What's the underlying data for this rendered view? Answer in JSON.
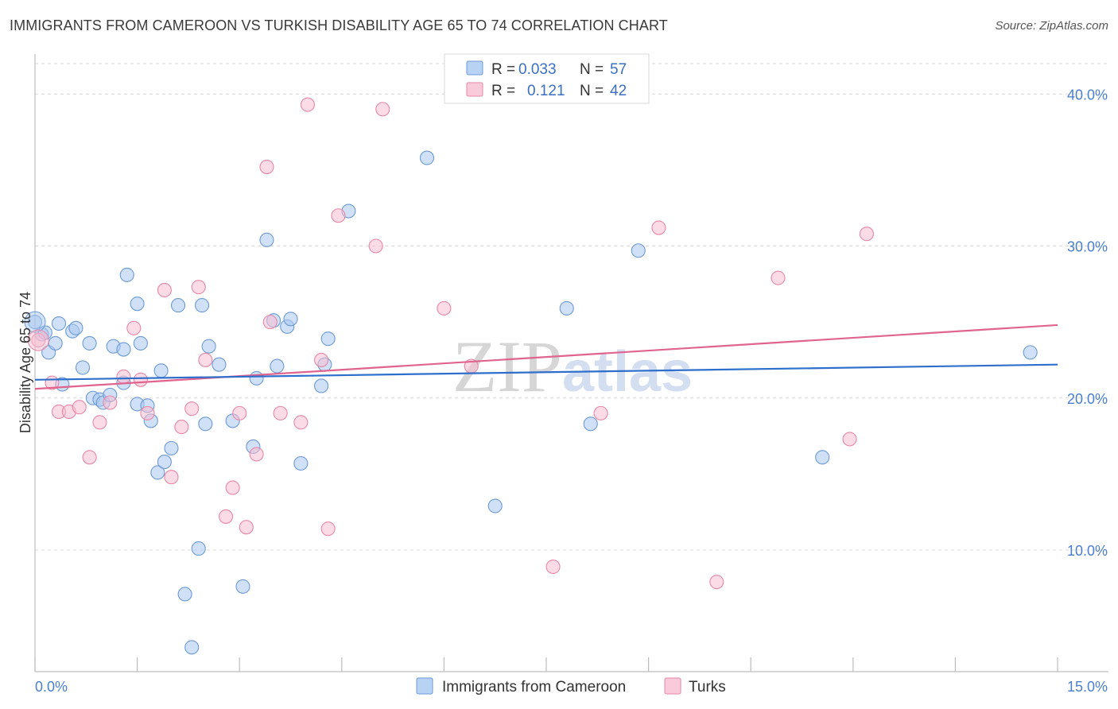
{
  "header": {
    "title": "IMMIGRANTS FROM CAMEROON VS TURKISH DISABILITY AGE 65 TO 74 CORRELATION CHART",
    "source": "Source: ZipAtlas.com"
  },
  "chart_data": {
    "type": "scatter",
    "title": "IMMIGRANTS FROM CAMEROON VS TURKISH DISABILITY AGE 65 TO 74 CORRELATION CHART",
    "xlabel": "",
    "ylabel": "Disability Age 65 to 74",
    "xlim": [
      0,
      15
    ],
    "ylim": [
      2,
      42
    ],
    "x_tick_labels": [
      "0.0%",
      "15.0%"
    ],
    "y_ticks": [
      10,
      20,
      30,
      40
    ],
    "y_tick_labels": [
      "10.0%",
      "20.0%",
      "30.0%",
      "40.0%"
    ],
    "grid": true,
    "watermark": "ZIPatlas",
    "legend": {
      "position": "top-center",
      "entries": [
        {
          "r_label": "R =",
          "r_value": "0.033",
          "n_label": "N =",
          "n_value": "57"
        },
        {
          "r_label": "R =",
          "r_value": "0.121",
          "n_label": "N =",
          "n_value": "42"
        }
      ]
    },
    "bottom_legend": [
      "Immigrants from Cameroon",
      "Turks"
    ],
    "colors": {
      "cameroon_fill": "#a9c8f0",
      "cameroon_stroke": "#6b9ad6",
      "cameroon_line": "#2f6fcc",
      "turks_fill": "#f7bdd0",
      "turks_stroke": "#e887a7",
      "turks_line": "#e0648e",
      "grid": "#d8d8d8",
      "tick_label": "#4a7fcf"
    },
    "series": [
      {
        "name": "Immigrants from Cameroon",
        "trend": {
          "x": [
            0,
            15
          ],
          "y": [
            21.2,
            22.2
          ]
        },
        "points": [
          [
            0.0,
            25.0
          ],
          [
            0.1,
            24.2
          ],
          [
            0.2,
            23.0
          ],
          [
            0.3,
            23.6
          ],
          [
            0.35,
            24.9
          ],
          [
            0.4,
            20.9
          ],
          [
            0.55,
            24.4
          ],
          [
            0.6,
            24.6
          ],
          [
            0.7,
            22.0
          ],
          [
            0.8,
            23.6
          ],
          [
            0.85,
            20.0
          ],
          [
            0.95,
            19.9
          ],
          [
            1.0,
            19.7
          ],
          [
            1.1,
            20.2
          ],
          [
            1.15,
            23.4
          ],
          [
            1.3,
            21.0
          ],
          [
            1.3,
            23.2
          ],
          [
            1.35,
            28.1
          ],
          [
            1.5,
            19.6
          ],
          [
            1.5,
            26.2
          ],
          [
            1.55,
            23.6
          ],
          [
            1.65,
            19.5
          ],
          [
            1.7,
            18.5
          ],
          [
            1.8,
            15.1
          ],
          [
            1.85,
            21.8
          ],
          [
            1.9,
            15.8
          ],
          [
            2.0,
            16.7
          ],
          [
            2.1,
            26.1
          ],
          [
            2.2,
            7.1
          ],
          [
            2.3,
            3.6
          ],
          [
            2.4,
            10.1
          ],
          [
            2.45,
            26.1
          ],
          [
            2.5,
            18.3
          ],
          [
            2.55,
            23.4
          ],
          [
            2.7,
            22.2
          ],
          [
            2.9,
            18.5
          ],
          [
            3.05,
            7.6
          ],
          [
            3.2,
            16.8
          ],
          [
            3.25,
            21.3
          ],
          [
            3.4,
            30.4
          ],
          [
            3.5,
            25.1
          ],
          [
            3.55,
            22.1
          ],
          [
            3.7,
            24.7
          ],
          [
            3.75,
            25.2
          ],
          [
            3.9,
            15.7
          ],
          [
            4.2,
            20.8
          ],
          [
            4.25,
            22.2
          ],
          [
            4.3,
            23.9
          ],
          [
            4.6,
            32.3
          ],
          [
            5.75,
            35.8
          ],
          [
            6.75,
            12.9
          ],
          [
            7.8,
            25.9
          ],
          [
            8.15,
            18.3
          ],
          [
            8.85,
            29.7
          ],
          [
            11.55,
            16.1
          ],
          [
            14.6,
            23.0
          ],
          [
            0.15,
            24.3
          ]
        ]
      },
      {
        "name": "Turks",
        "trend": {
          "x": [
            0,
            15
          ],
          "y": [
            20.6,
            24.8
          ]
        },
        "points": [
          [
            0.05,
            23.8
          ],
          [
            0.25,
            21.0
          ],
          [
            0.35,
            19.1
          ],
          [
            0.5,
            19.1
          ],
          [
            0.65,
            19.4
          ],
          [
            0.8,
            16.1
          ],
          [
            0.95,
            18.4
          ],
          [
            1.1,
            19.7
          ],
          [
            1.3,
            21.4
          ],
          [
            1.45,
            24.6
          ],
          [
            1.55,
            21.2
          ],
          [
            1.65,
            19.0
          ],
          [
            1.9,
            27.1
          ],
          [
            2.0,
            14.8
          ],
          [
            2.15,
            18.1
          ],
          [
            2.3,
            19.3
          ],
          [
            2.4,
            27.3
          ],
          [
            2.5,
            22.5
          ],
          [
            2.8,
            12.2
          ],
          [
            2.9,
            14.1
          ],
          [
            3.0,
            19.0
          ],
          [
            3.1,
            11.5
          ],
          [
            3.25,
            16.3
          ],
          [
            3.4,
            35.2
          ],
          [
            3.45,
            25.0
          ],
          [
            3.6,
            19.0
          ],
          [
            3.9,
            18.4
          ],
          [
            4.0,
            39.3
          ],
          [
            4.2,
            22.5
          ],
          [
            4.3,
            11.4
          ],
          [
            4.45,
            32.0
          ],
          [
            5.0,
            30.0
          ],
          [
            5.1,
            39.0
          ],
          [
            6.0,
            25.9
          ],
          [
            6.4,
            22.1
          ],
          [
            7.6,
            8.9
          ],
          [
            8.3,
            19.0
          ],
          [
            9.15,
            31.2
          ],
          [
            10.0,
            7.9
          ],
          [
            10.9,
            27.9
          ],
          [
            11.95,
            17.3
          ],
          [
            12.2,
            30.8
          ]
        ]
      }
    ]
  }
}
